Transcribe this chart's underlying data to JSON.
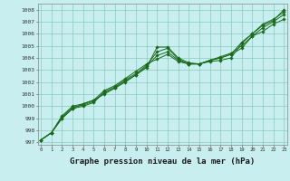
{
  "background_color": "#c8eef0",
  "grid_color": "#88ccbb",
  "line_color": "#1a6b1a",
  "marker_color": "#1a6b1a",
  "xlabel": "Graphe pression niveau de la mer (hPa)",
  "xlabel_fontsize": 6.5,
  "ylim": [
    996.8,
    1008.5
  ],
  "xlim": [
    -0.3,
    23.3
  ],
  "yticks": [
    997,
    998,
    999,
    1000,
    1001,
    1002,
    1003,
    1004,
    1005,
    1006,
    1007,
    1008
  ],
  "xticks": [
    0,
    1,
    2,
    3,
    4,
    5,
    6,
    7,
    8,
    9,
    10,
    11,
    12,
    13,
    14,
    15,
    16,
    17,
    18,
    19,
    20,
    21,
    22,
    23
  ],
  "series": [
    [
      997.2,
      997.8,
      999.0,
      999.8,
      1000.2,
      1000.5,
      1001.0,
      1001.5,
      1002.0,
      1002.6,
      1003.2,
      1004.9,
      1004.9,
      1004.0,
      1003.6,
      1003.5,
      1003.7,
      1003.8,
      1004.0,
      1005.2,
      1006.0,
      1006.7,
      1007.1,
      1008.0
    ],
    [
      997.2,
      997.8,
      999.0,
      999.8,
      1000.0,
      1000.3,
      1001.2,
      1001.6,
      1002.2,
      1002.7,
      1003.4,
      1004.5,
      1004.8,
      1003.9,
      1003.5,
      1003.5,
      1003.8,
      1004.0,
      1004.3,
      1005.3,
      1006.0,
      1006.8,
      1007.2,
      1007.8
    ],
    [
      997.2,
      997.8,
      999.1,
      999.9,
      1000.1,
      1000.4,
      1001.1,
      1001.5,
      1002.1,
      1002.6,
      1003.3,
      1004.2,
      1004.5,
      1003.8,
      1003.5,
      1003.5,
      1003.8,
      1004.1,
      1004.4,
      1005.0,
      1005.8,
      1006.5,
      1007.0,
      1007.6
    ],
    [
      997.2,
      997.8,
      999.2,
      1000.0,
      1000.2,
      1000.5,
      1001.3,
      1001.7,
      1002.3,
      1002.9,
      1003.5,
      1003.9,
      1004.3,
      1003.7,
      1003.5,
      1003.5,
      1003.8,
      1004.0,
      1004.3,
      1004.8,
      1005.8,
      1006.2,
      1006.8,
      1007.2
    ]
  ]
}
